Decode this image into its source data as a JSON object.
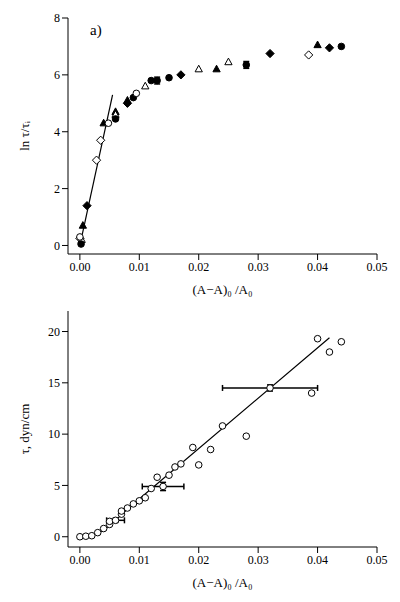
{
  "chart_data": [
    {
      "type": "scatter",
      "title": "a)",
      "x_label": "(A−A)₀ /A₀",
      "y_label": "ln τ/τᵢ",
      "xlim": [
        -0.002,
        0.05
      ],
      "xticks": [
        {
          "value": 0,
          "label": "0.00"
        },
        {
          "value": 0.01,
          "label": "0.01"
        },
        {
          "value": 0.02,
          "label": "0.02"
        },
        {
          "value": 0.03,
          "label": "0.03"
        },
        {
          "value": 0.04,
          "label": "0.04"
        },
        {
          "value": 0.05,
          "label": "0.05"
        }
      ],
      "ylim": [
        -0.3,
        8
      ],
      "yticks": [
        0,
        2,
        4,
        6,
        8
      ],
      "grid": false,
      "series": [
        {
          "type": "line",
          "color": "#000000",
          "x": [
            0,
            0.0055
          ],
          "y": [
            0,
            5.3
          ]
        },
        {
          "color": "#000000",
          "marker": "open_diamond",
          "x": [
            0,
            0.0028,
            0.0035,
            0.0385
          ],
          "y": [
            0.25,
            3.0,
            3.7,
            6.7
          ]
        },
        {
          "color": "#000000",
          "marker": "filled_diamond",
          "x": [
            0.0012,
            0.008,
            0.017,
            0.032,
            0.042
          ],
          "y": [
            1.4,
            5.0,
            6.0,
            6.75,
            6.95
          ]
        },
        {
          "color": "#000000",
          "marker": "filled_triangle",
          "x": [
            0.0005,
            0.004,
            0.006,
            0.008,
            0.023,
            0.04
          ],
          "y": [
            0.7,
            4.3,
            4.7,
            5.1,
            6.2,
            7.05
          ]
        },
        {
          "color": "#000000",
          "marker": "open_triangle",
          "x": [
            0.0003,
            0.006,
            0.011,
            0.02,
            0.025
          ],
          "y": [
            0.2,
            4.6,
            5.6,
            6.2,
            6.45
          ]
        },
        {
          "color": "#000000",
          "marker": "filled_circle",
          "x": [
            0.0002,
            0.006,
            0.009,
            0.012,
            0.015,
            0.044
          ],
          "y": [
            0.05,
            4.45,
            5.2,
            5.8,
            5.9,
            7.0
          ]
        },
        {
          "color": "#000000",
          "marker": "open_circle",
          "x": [
            0,
            0.0048,
            0.0095
          ],
          "y": [
            0.3,
            4.3,
            5.35
          ]
        },
        {
          "color": "#000000",
          "marker": "filled_circle",
          "x": [
            0.013,
            0.028
          ],
          "y": [
            5.8,
            6.35
          ],
          "yerr": [
            0.12,
            0.12
          ]
        }
      ]
    },
    {
      "type": "scatter",
      "x_label": "(A−A)₀ /A₀",
      "y_label": "τ, dyn/cm",
      "xlim": [
        -0.002,
        0.05
      ],
      "xticks": [
        {
          "value": 0,
          "label": "0.00"
        },
        {
          "value": 0.01,
          "label": "0.01"
        },
        {
          "value": 0.02,
          "label": "0.02"
        },
        {
          "value": 0.03,
          "label": "0.03"
        },
        {
          "value": 0.04,
          "label": "0.04"
        },
        {
          "value": 0.05,
          "label": "0.05"
        }
      ],
      "ylim": [
        -1,
        22
      ],
      "yticks": [
        0,
        5,
        10,
        15,
        20
      ],
      "grid": false,
      "series": [
        {
          "type": "line",
          "color": "#000000",
          "x": [
            0,
            0.002,
            0.004,
            0.006,
            0.008,
            0.042
          ],
          "y": [
            0,
            0.1,
            0.6,
            1.6,
            2.7,
            19.4
          ]
        },
        {
          "color": "#000000",
          "marker": "open_circle",
          "x": [
            0,
            0.001,
            0.002,
            0.003,
            0.004,
            0.005,
            0.005,
            0.007,
            0.007,
            0.008,
            0.009,
            0.01,
            0.011,
            0.012,
            0.013,
            0.015,
            0.016,
            0.017,
            0.019,
            0.02,
            0.022,
            0.024,
            0.028,
            0.039,
            0.04,
            0.042,
            0.044
          ],
          "y": [
            0,
            0.05,
            0.1,
            0.4,
            0.8,
            1.2,
            1.5,
            2.2,
            2.5,
            2.8,
            3.2,
            3.5,
            3.8,
            4.7,
            5.8,
            6.0,
            6.8,
            7.1,
            8.7,
            7.0,
            8.5,
            10.8,
            9.8,
            14.0,
            19.3,
            18.0,
            19.0
          ]
        },
        {
          "color": "#000000",
          "marker": "open_circle",
          "x": [
            0.006,
            0.014,
            0.032
          ],
          "y": [
            1.6,
            4.9,
            14.5
          ],
          "xerr": [
            0.0015,
            0.0035,
            0.008
          ],
          "yerr": [
            0.2,
            0.4,
            0.3
          ]
        }
      ]
    }
  ]
}
